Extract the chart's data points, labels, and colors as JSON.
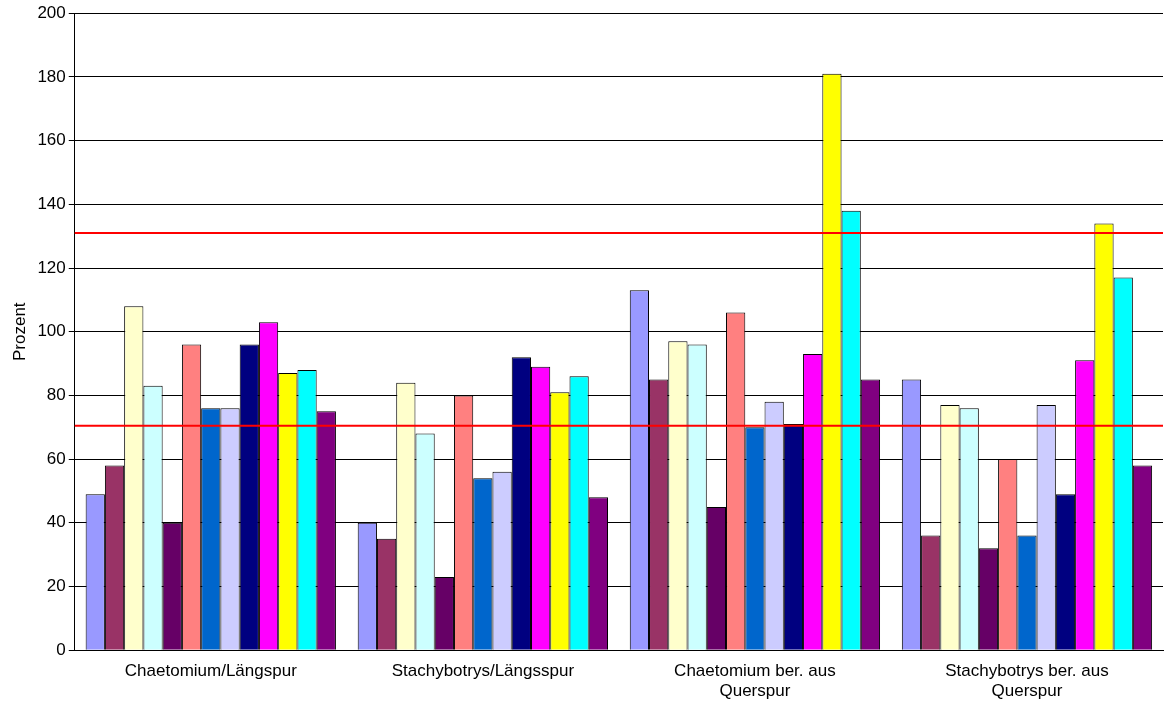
{
  "chart_data": {
    "type": "bar",
    "ylabel": "Prozent",
    "categories": [
      "Chaetomium/Längspur",
      "Stachybotrys/Längsspur",
      "Chaetomium ber. aus Querspur",
      "Stachybotrys ber. aus Querspur"
    ],
    "series": [
      {
        "color": "#9999ff",
        "values": [
          49,
          40,
          113,
          85
        ]
      },
      {
        "color": "#993366",
        "values": [
          58,
          35,
          85,
          36
        ]
      },
      {
        "color": "#ffffcc",
        "values": [
          108,
          84,
          97,
          77
        ]
      },
      {
        "color": "#ccffff",
        "values": [
          83,
          68,
          96,
          76
        ]
      },
      {
        "color": "#660066",
        "values": [
          40,
          23,
          45,
          32
        ]
      },
      {
        "color": "#ff8080",
        "values": [
          96,
          80,
          106,
          60
        ]
      },
      {
        "color": "#0066cc",
        "values": [
          76,
          54,
          70,
          36
        ]
      },
      {
        "color": "#ccccff",
        "values": [
          76,
          56,
          78,
          77
        ]
      },
      {
        "color": "#000080",
        "values": [
          96,
          92,
          71,
          49
        ]
      },
      {
        "color": "#ff00ff",
        "values": [
          103,
          89,
          93,
          91
        ]
      },
      {
        "color": "#ffff00",
        "values": [
          87,
          81,
          181,
          134
        ]
      },
      {
        "color": "#00ffff",
        "values": [
          88,
          86,
          138,
          117
        ]
      },
      {
        "color": "#800080",
        "values": [
          75,
          48,
          85,
          58
        ]
      }
    ],
    "ylim": [
      0,
      200
    ],
    "yticks": [
      0,
      20,
      40,
      60,
      80,
      100,
      120,
      140,
      160,
      180,
      200
    ],
    "grid": "y",
    "legend": false,
    "ref_lines": [
      {
        "axis": "y",
        "value": 131,
        "color": "#ff0000"
      },
      {
        "axis": "y",
        "value": 70.5,
        "color": "#ff0000"
      }
    ]
  }
}
